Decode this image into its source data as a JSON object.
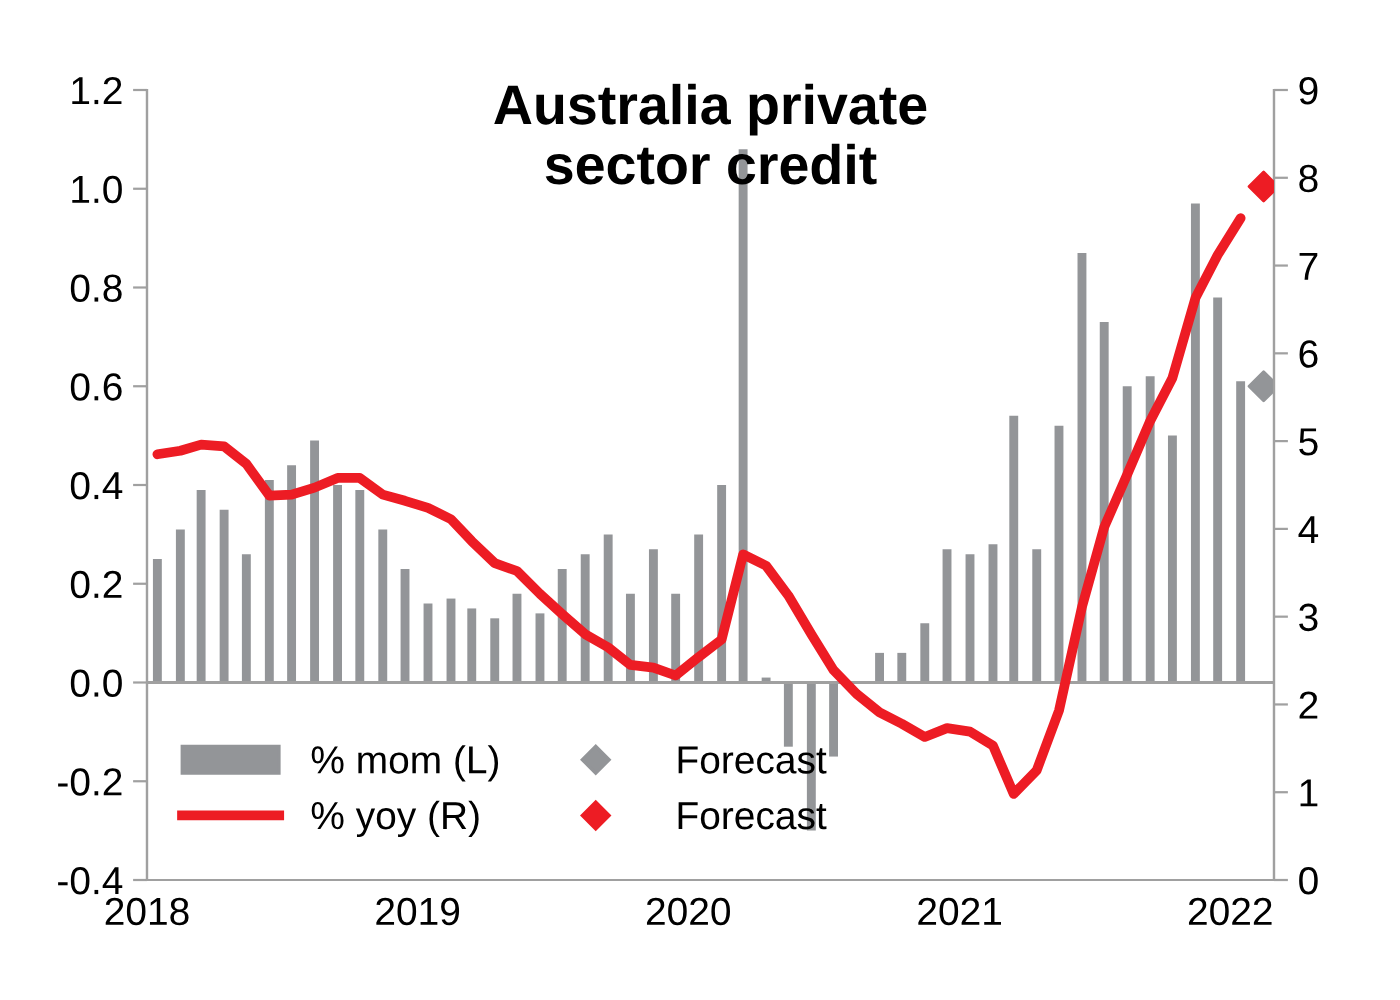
{
  "chart_data": {
    "type": "bar",
    "title": "Australia private\nsector credit",
    "series": [
      {
        "name": "% mom (L)",
        "color": "#939598",
        "x": [
          "2018-01-15",
          "2018-02-15",
          "2018-03-15",
          "2018-04-15",
          "2018-05-15",
          "2018-06-15",
          "2018-07-15",
          "2018-08-15",
          "2018-09-15",
          "2018-10-15",
          "2018-11-15",
          "2018-12-15",
          "2019-01-15",
          "2019-02-15",
          "2019-03-15",
          "2019-04-15",
          "2019-05-15",
          "2019-06-15",
          "2019-07-15",
          "2019-08-15",
          "2019-09-15",
          "2019-10-15",
          "2019-11-15",
          "2019-12-15",
          "2020-01-15",
          "2020-02-15",
          "2020-03-15",
          "2020-04-15",
          "2020-05-15",
          "2020-06-15",
          "2020-07-15",
          "2020-08-15",
          "2020-09-15",
          "2020-10-15",
          "2020-11-15",
          "2020-12-15",
          "2021-01-15",
          "2021-02-15",
          "2021-03-15",
          "2021-04-15",
          "2021-05-15",
          "2021-06-15",
          "2021-07-15",
          "2021-08-15",
          "2021-09-15",
          "2021-10-15",
          "2021-11-15",
          "2021-12-15",
          "2022-01-15"
        ],
        "values": [
          0.25,
          0.31,
          0.39,
          0.35,
          0.26,
          0.41,
          0.44,
          0.49,
          0.4,
          0.39,
          0.31,
          0.23,
          0.16,
          0.17,
          0.15,
          0.13,
          0.18,
          0.14,
          0.23,
          0.26,
          0.3,
          0.18,
          0.27,
          0.18,
          0.3,
          0.4,
          1.08,
          0.01,
          -0.13,
          -0.3,
          -0.15,
          0.0,
          0.06,
          0.06,
          0.12,
          0.27,
          0.26,
          0.28,
          0.54,
          0.27,
          0.52,
          0.87,
          0.73,
          0.6,
          0.62,
          0.5,
          0.97,
          0.78,
          0.61
        ]
      },
      {
        "name": "% yoy (R)",
        "type": "line",
        "axis": "y2",
        "color": "#ed1c24",
        "marker": "none",
        "line_style": "solid",
        "x": [
          "2018-01-15",
          "2018-02-15",
          "2018-03-15",
          "2018-04-15",
          "2018-05-15",
          "2018-06-15",
          "2018-07-15",
          "2018-08-15",
          "2018-09-15",
          "2018-10-15",
          "2018-11-15",
          "2018-12-15",
          "2019-01-15",
          "2019-02-15",
          "2019-03-15",
          "2019-04-15",
          "2019-05-15",
          "2019-06-15",
          "2019-07-15",
          "2019-08-15",
          "2019-09-15",
          "2019-10-15",
          "2019-11-15",
          "2019-12-15",
          "2020-01-15",
          "2020-02-15",
          "2020-03-15",
          "2020-04-15",
          "2020-05-15",
          "2020-06-15",
          "2020-07-15",
          "2020-08-15",
          "2020-09-15",
          "2020-10-15",
          "2020-11-15",
          "2020-12-15",
          "2021-01-15",
          "2021-02-15",
          "2021-03-15",
          "2021-04-15",
          "2021-05-15",
          "2021-06-15",
          "2021-07-15",
          "2021-08-15",
          "2021-09-15",
          "2021-10-15",
          "2021-11-15",
          "2021-12-15",
          "2022-01-15"
        ],
        "values": [
          4.85,
          4.89,
          4.96,
          4.94,
          4.74,
          4.38,
          4.39,
          4.47,
          4.58,
          4.58,
          4.39,
          4.32,
          4.24,
          4.11,
          3.86,
          3.61,
          3.52,
          3.26,
          3.03,
          2.8,
          2.65,
          2.45,
          2.42,
          2.33,
          2.54,
          2.74,
          3.71,
          3.58,
          3.24,
          2.8,
          2.39,
          2.12,
          1.91,
          1.78,
          1.63,
          1.73,
          1.69,
          1.53,
          0.98,
          1.25,
          1.93,
          3.11,
          4.02,
          4.62,
          5.23,
          5.72,
          6.63,
          7.12,
          7.54
        ]
      },
      {
        "name": "Forecast",
        "type": "scatter",
        "color": "#939598",
        "marker": "diamond",
        "x": [
          "2022-02-15"
        ],
        "values": [
          0.6
        ]
      },
      {
        "name": "Forecast",
        "type": "scatter",
        "axis": "y2",
        "color": "#ed1c24",
        "marker": "diamond",
        "x": [
          "2022-02-15"
        ],
        "values": [
          7.9
        ]
      }
    ],
    "xlim": [
      "2018-01-01",
      "2022-03-01"
    ],
    "xticks": [
      {
        "value": "2018-01-01",
        "label": "2018"
      },
      {
        "value": "2019-01-01",
        "label": "2019"
      },
      {
        "value": "2020-01-01",
        "label": "2020"
      },
      {
        "value": "2021-01-01",
        "label": "2021"
      },
      {
        "value": "2022-01-01",
        "label": "2022"
      }
    ],
    "ylim": [
      -0.4,
      1.2
    ],
    "yticks": [
      -0.4,
      -0.2,
      {
        "value": 0,
        "label": "0.0"
      },
      0.2,
      0.4,
      0.6,
      0.8,
      {
        "value": 1,
        "label": "1.0"
      },
      1.2
    ],
    "y2lim": [
      0,
      9
    ],
    "y2ticks": [
      0,
      1,
      2,
      3,
      4,
      5,
      6,
      7,
      8,
      9
    ],
    "ref_lines": [
      {
        "axis": "y",
        "value": 0,
        "color": "#a0a0a0"
      }
    ],
    "grid": false,
    "legend": "bottom left"
  }
}
